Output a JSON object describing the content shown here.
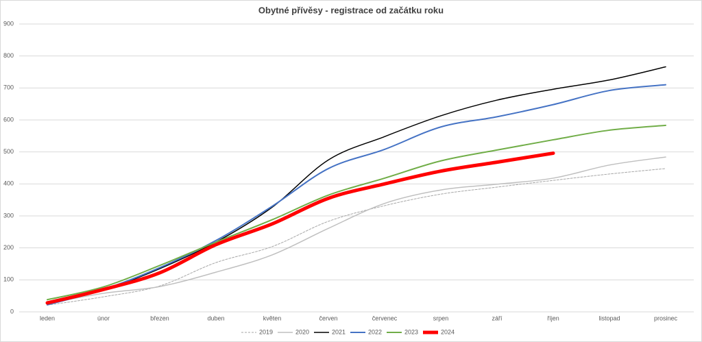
{
  "chart_data": {
    "type": "line",
    "title": "Obytné přívěsy - registrace od začátku roku",
    "categories": [
      "leden",
      "únor",
      "březen",
      "duben",
      "květen",
      "červen",
      "červenec",
      "srpen",
      "září",
      "říjen",
      "listopad",
      "prosinec"
    ],
    "series": [
      {
        "name": "2019",
        "color": "#a6a6a6",
        "dashed": true,
        "width": 1,
        "values": [
          21,
          47,
          81,
          154,
          204,
          283,
          332,
          368,
          390,
          411,
          431,
          448
        ]
      },
      {
        "name": "2020",
        "color": "#bfbfbf",
        "width": 1.5,
        "values": [
          26,
          58,
          79,
          124,
          178,
          261,
          339,
          381,
          399,
          418,
          459,
          484
        ]
      },
      {
        "name": "2021",
        "color": "#000000",
        "width": 1.5,
        "values": [
          24,
          68,
          135,
          218,
          327,
          475,
          548,
          613,
          662,
          696,
          725,
          766
        ]
      },
      {
        "name": "2022",
        "color": "#4472c4",
        "width": 2,
        "values": [
          22,
          70,
          138,
          223,
          330,
          448,
          508,
          578,
          610,
          648,
          692,
          710
        ]
      },
      {
        "name": "2023",
        "color": "#70ad47",
        "width": 2,
        "values": [
          38,
          78,
          145,
          218,
          288,
          365,
          418,
          472,
          506,
          538,
          568,
          583
        ]
      },
      {
        "name": "2024",
        "color": "#ff0000",
        "width": 5,
        "values": [
          28,
          70,
          122,
          210,
          275,
          355,
          400,
          440,
          468,
          496,
          null,
          null
        ]
      }
    ],
    "ylim": [
      0,
      900
    ],
    "yticks": [
      0,
      100,
      200,
      300,
      400,
      500,
      600,
      700,
      800,
      900
    ],
    "grid": true,
    "legend": "bottom"
  }
}
